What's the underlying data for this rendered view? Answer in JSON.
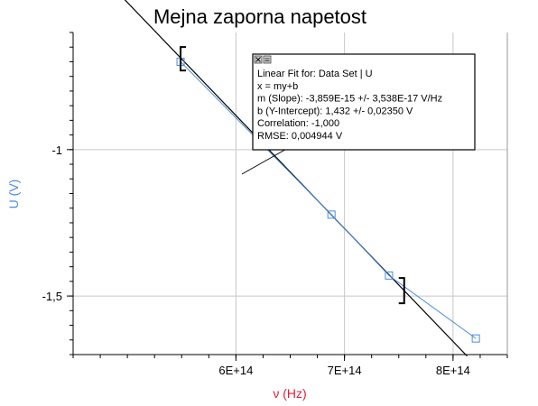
{
  "chart_data": {
    "type": "scatter",
    "title": "Mejna zaporna napetost",
    "xlabel": "ν (Hz)",
    "ylabel": "U (V)",
    "xlim": [
      450000000000000.0,
      850000000000000.0
    ],
    "ylim": [
      -1.7,
      -0.6
    ],
    "x_ticks": [
      {
        "value": 600000000000000.0,
        "label": "6E+14"
      },
      {
        "value": 700000000000000.0,
        "label": "7E+14"
      },
      {
        "value": 800000000000000.0,
        "label": "8E+14"
      }
    ],
    "y_ticks": [
      {
        "value": -1.0,
        "label": "-1"
      },
      {
        "value": -1.5,
        "label": "-1,5"
      }
    ],
    "grid": true,
    "series": [
      {
        "points": [
          {
            "x": 549000000000000.0,
            "y": -0.7
          },
          {
            "x": 688000000000000.0,
            "y": -1.222
          },
          {
            "x": 741000000000000.0,
            "y": -1.43
          },
          {
            "x": 821000000000000.0,
            "y": -1.645
          }
        ],
        "color": "#4a8cd8"
      }
    ],
    "fit_line": {
      "slope": -3.859e-15,
      "intercept": 1.432,
      "x_range": [
        450000000000000.0,
        813000000000000.0
      ],
      "color": "#000000"
    },
    "fit_range_brackets": [
      549000000000000.0,
      755000000000000.0
    ],
    "fit_box": {
      "lines": [
        "Linear Fit for: Data Set | U",
        "x = my+b",
        "m (Slope): -3,859E-15 +/- 3,538E-17 V/Hz",
        "b (Y-Intercept): 1,432 +/- 0,02350 V",
        "Correlation: -1,000",
        "RMSE: 0,004944 V"
      ]
    },
    "colors": {
      "xlabel": "#e0203a",
      "ylabel": "#4a8cd8",
      "grid": "#c8c8c8",
      "axis": "#000000"
    }
  }
}
